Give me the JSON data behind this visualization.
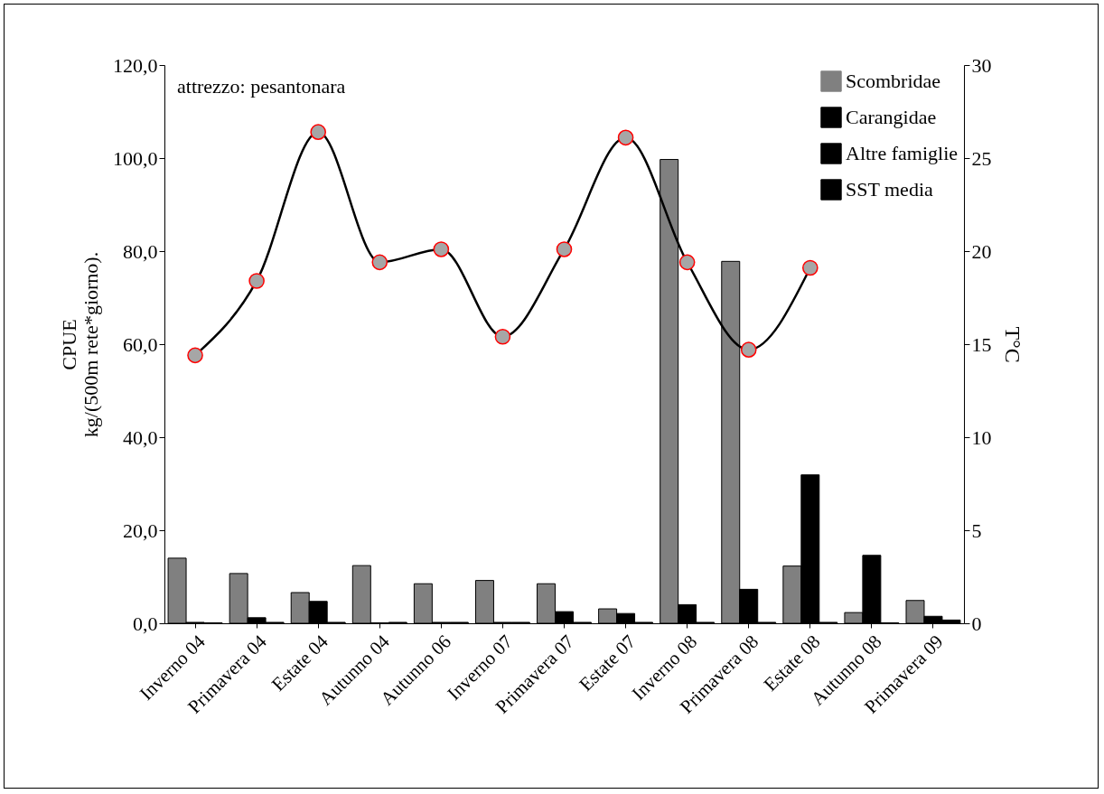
{
  "chart_data": {
    "type": "bar",
    "ylabel": "CPUE\nkg/(500m rete*giorno).",
    "y2label": "T°C",
    "annotations": [
      "attrezzo: pesantonara"
    ],
    "categories": [
      "Inverno 04",
      "Primavera 04",
      "Estate 04",
      "Autunno 04",
      "Autunno 06",
      "Inverno 07",
      "Primavera 07",
      "Estate 07",
      "Inverno 08",
      "Primavera 08",
      "Estate 08",
      "Autunno 08",
      "Primavera 09"
    ],
    "series": [
      {
        "name": "Scombridae",
        "color": "#808080",
        "values": [
          14.0,
          10.7,
          6.6,
          12.4,
          8.5,
          9.2,
          8.5,
          3.1,
          99.7,
          77.8,
          12.3,
          2.3,
          4.9
        ]
      },
      {
        "name": "Carangidae",
        "color": "#000000",
        "values": [
          0.2,
          1.2,
          4.7,
          0.1,
          0.2,
          0.2,
          2.5,
          2.1,
          4.0,
          7.3,
          31.9,
          14.6,
          1.5
        ]
      },
      {
        "name": "Altre famiglie",
        "color": "#000000",
        "values": [
          0.1,
          0.2,
          0.2,
          0.2,
          0.2,
          0.2,
          0.2,
          0.2,
          0.2,
          0.2,
          0.2,
          0.1,
          0.7
        ]
      },
      {
        "name": "SST media",
        "type": "line",
        "axis": "y2",
        "color": "#000000",
        "marker": "circle",
        "values": [
          14.4,
          18.4,
          26.4,
          19.4,
          20.1,
          15.4,
          20.1,
          26.1,
          19.4,
          14.7,
          19.1,
          null,
          null
        ]
      }
    ],
    "ylim": [
      0,
      120
    ],
    "yticks": [
      {
        "value": 0,
        "label": "0,0"
      },
      {
        "value": 20,
        "label": "20,0"
      },
      {
        "value": 40,
        "label": "40,0"
      },
      {
        "value": 60,
        "label": "60,0"
      },
      {
        "value": 80,
        "label": "80,0"
      },
      {
        "value": 100,
        "label": "100,0"
      },
      {
        "value": 120,
        "label": "120,0"
      }
    ],
    "y2lim": [
      0,
      30
    ],
    "y2ticks": [
      0,
      5,
      10,
      15,
      20,
      25,
      30
    ],
    "grid": false,
    "legend": "top right"
  }
}
